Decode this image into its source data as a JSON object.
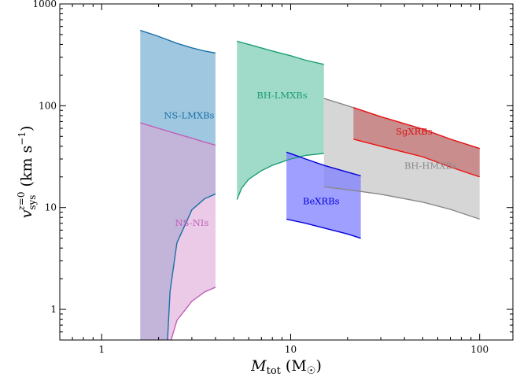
{
  "chart_data": {
    "type": "area",
    "xlabel": "M_tot (M_☉)",
    "ylabel": "v_sys^(z=0) (km s^-1)",
    "x_scale": "log",
    "y_scale": "log",
    "xlim": [
      0.6,
      150
    ],
    "ylim": [
      0.5,
      1000
    ],
    "x_ticks": [
      {
        "value": 1,
        "label": "1"
      },
      {
        "value": 10,
        "label": "10"
      },
      {
        "value": 100,
        "label": "100"
      }
    ],
    "y_ticks": [
      {
        "value": 1,
        "label": "1"
      },
      {
        "value": 10,
        "label": "10"
      },
      {
        "value": 100,
        "label": "100"
      },
      {
        "value": 1000,
        "label": "1000"
      }
    ],
    "grid": false,
    "legend": "none",
    "series": [
      {
        "name": "NS-LMXBs",
        "fill": "#7fb5d6",
        "stroke": "#1a6fa8",
        "fill_opacity": 0.75,
        "label_pos": {
          "x": 2.9,
          "y": 75
        },
        "label_color": "#1a6fa8",
        "upper": [
          [
            1.6,
            550
          ],
          [
            2.0,
            480
          ],
          [
            2.5,
            410
          ],
          [
            3.0,
            370
          ],
          [
            3.5,
            345
          ],
          [
            4.0,
            330
          ]
        ],
        "lower": [
          [
            2.23,
            0.5
          ],
          [
            2.3,
            1.5
          ],
          [
            2.5,
            4.5
          ],
          [
            3.0,
            9.5
          ],
          [
            3.5,
            12.2
          ],
          [
            4.0,
            13.6
          ]
        ],
        "lower_outline": true
      },
      {
        "name": "NS-NIs",
        "fill": "#dca6d6",
        "stroke": "#c060b8",
        "fill_opacity": 0.6,
        "label_pos": {
          "x": 3.0,
          "y": 6.6
        },
        "label_color": "#c060b8",
        "upper": [
          [
            1.6,
            68
          ],
          [
            2.0,
            60
          ],
          [
            2.5,
            53
          ],
          [
            3.0,
            48
          ],
          [
            3.5,
            44
          ],
          [
            4.0,
            41
          ]
        ],
        "lower": [
          [
            2.33,
            0.5
          ],
          [
            2.5,
            0.78
          ],
          [
            3.0,
            1.2
          ],
          [
            3.5,
            1.48
          ],
          [
            4.0,
            1.65
          ]
        ],
        "lower_outline": true
      },
      {
        "name": "BH-LMXBs",
        "fill": "#8fd4bf",
        "stroke": "#1a9e73",
        "fill_opacity": 0.85,
        "label_pos": {
          "x": 9.0,
          "y": 118
        },
        "label_color": "#1a9e73",
        "upper": [
          [
            5.2,
            430
          ],
          [
            6.0,
            400
          ],
          [
            8.0,
            345
          ],
          [
            10.0,
            310
          ],
          [
            12.0,
            280
          ],
          [
            15.0,
            255
          ]
        ],
        "lower": [
          [
            5.2,
            12
          ],
          [
            5.5,
            15.5
          ],
          [
            6.0,
            19
          ],
          [
            7.0,
            23
          ],
          [
            8.0,
            26
          ],
          [
            10.0,
            30
          ],
          [
            12.0,
            32.5
          ],
          [
            15.0,
            34
          ]
        ],
        "lower_outline": true
      },
      {
        "name": "BH-HMXBs",
        "fill": "#d2d2d2",
        "stroke": "#888888",
        "fill_opacity": 0.9,
        "label_pos": {
          "x": 55,
          "y": 24
        },
        "label_color": "#8c8c8c",
        "upper": [
          [
            15,
            118
          ],
          [
            20,
            100
          ],
          [
            30,
            78
          ],
          [
            50,
            59
          ],
          [
            70,
            47
          ],
          [
            100,
            38
          ]
        ],
        "lower": [
          [
            15,
            16
          ],
          [
            20,
            15
          ],
          [
            30,
            13.5
          ],
          [
            50,
            11.3
          ],
          [
            70,
            9.6
          ],
          [
            100,
            7.7
          ]
        ],
        "lower_outline": true
      },
      {
        "name": "BeXRBs",
        "fill": "#7f7fff",
        "stroke": "#0000dd",
        "fill_opacity": 0.75,
        "label_pos": {
          "x": 14.5,
          "y": 10.8
        },
        "label_color": "#0000dd",
        "upper": [
          [
            9.5,
            35
          ],
          [
            12.0,
            30
          ],
          [
            15.0,
            26
          ],
          [
            20.0,
            22.3
          ],
          [
            23.5,
            20.5
          ]
        ],
        "lower": [
          [
            9.5,
            7.7
          ],
          [
            12.0,
            7.0
          ],
          [
            15.0,
            6.3
          ],
          [
            20.0,
            5.5
          ],
          [
            23.5,
            5.0
          ]
        ],
        "lower_outline": true
      },
      {
        "name": "SgXRBs",
        "fill": "#c88080",
        "stroke": "#ee1111",
        "fill_opacity": 0.85,
        "label_pos": {
          "x": 45,
          "y": 52
        },
        "label_color": "#dd1111",
        "upper": [
          [
            21.5,
            96
          ],
          [
            30,
            78
          ],
          [
            50,
            59
          ],
          [
            70,
            47
          ],
          [
            100,
            38
          ]
        ],
        "lower": [
          [
            21.5,
            47
          ],
          [
            30,
            40
          ],
          [
            50,
            31.5
          ],
          [
            70,
            25
          ],
          [
            100,
            20
          ]
        ],
        "lower_outline": true
      }
    ]
  }
}
